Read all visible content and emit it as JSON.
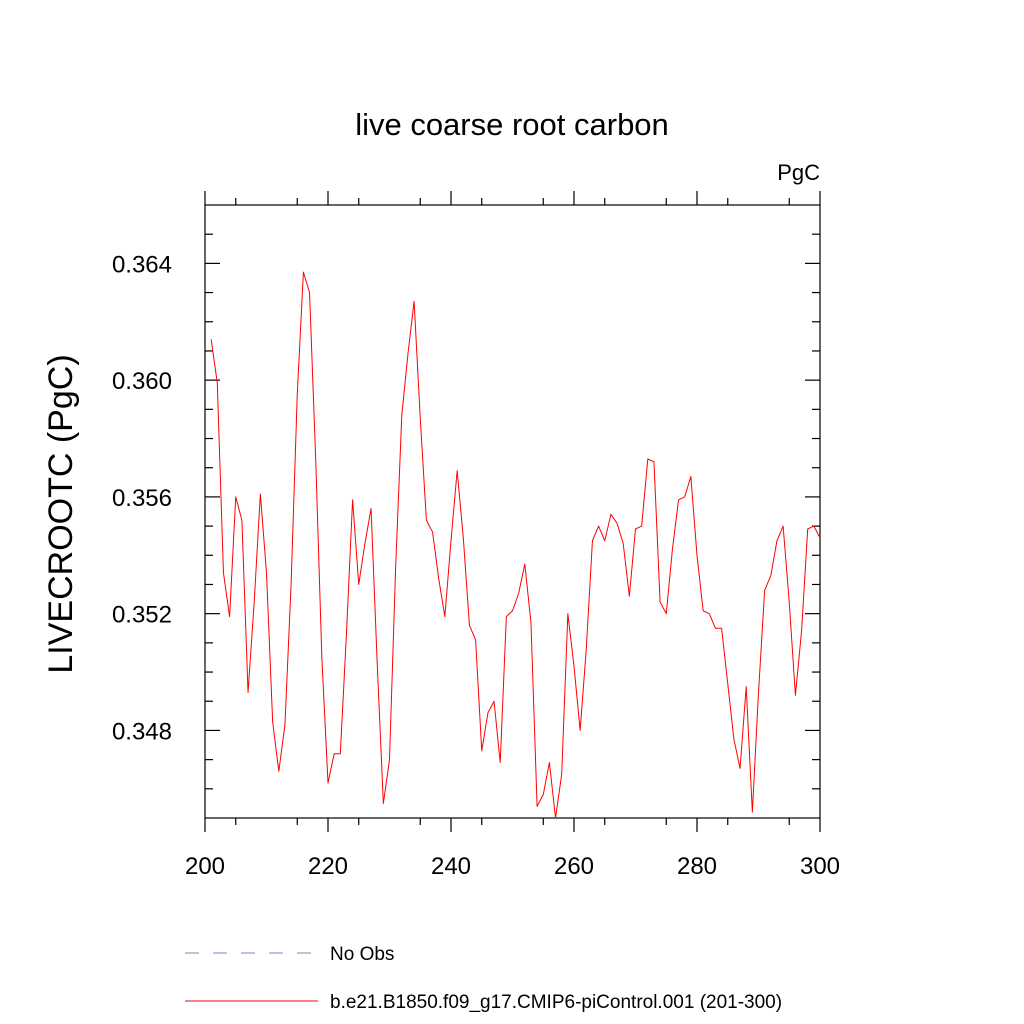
{
  "chart_data": {
    "type": "line",
    "title": "live coarse root carbon",
    "units_label": "PgC",
    "xlabel": "",
    "ylabel": "LIVECROOTC  (PgC)",
    "xlim": [
      200,
      300
    ],
    "ylim": [
      0.345,
      0.366
    ],
    "x_ticks": [
      200,
      220,
      240,
      260,
      280,
      300
    ],
    "x_tick_labels": [
      "200",
      "220",
      "240",
      "260",
      "280",
      "300"
    ],
    "y_ticks": [
      0.348,
      0.352,
      0.356,
      0.36,
      0.364
    ],
    "y_tick_labels": [
      "0.348",
      "0.352",
      "0.356",
      "0.360",
      "0.364"
    ],
    "grid": false,
    "legend_placement": "bottom",
    "series": [
      {
        "name": "b.e21.B1850.f09_g17.CMIP6-piControl.001 (201-300)",
        "color": "#ff0000",
        "style": "solid",
        "x": [
          201,
          202,
          203,
          204,
          205,
          206,
          207,
          208,
          209,
          210,
          211,
          212,
          213,
          214,
          215,
          216,
          217,
          218,
          219,
          220,
          221,
          222,
          223,
          224,
          225,
          226,
          227,
          228,
          229,
          230,
          231,
          232,
          233,
          234,
          235,
          236,
          237,
          238,
          239,
          240,
          241,
          242,
          243,
          244,
          245,
          246,
          247,
          248,
          249,
          250,
          251,
          252,
          253,
          254,
          255,
          256,
          257,
          258,
          259,
          260,
          261,
          262,
          263,
          264,
          265,
          266,
          267,
          268,
          269,
          270,
          271,
          272,
          273,
          274,
          275,
          276,
          277,
          278,
          279,
          280,
          281,
          282,
          283,
          284,
          285,
          286,
          287,
          288,
          289,
          290,
          291,
          292,
          293,
          294,
          295,
          296,
          297,
          298,
          299,
          300
        ],
        "y": [
          0.3614,
          0.3599,
          0.3534,
          0.3519,
          0.356,
          0.3552,
          0.3493,
          0.3524,
          0.3561,
          0.3534,
          0.3483,
          0.3466,
          0.3482,
          0.353,
          0.3595,
          0.3637,
          0.363,
          0.3573,
          0.3505,
          0.3462,
          0.3472,
          0.3472,
          0.3513,
          0.3559,
          0.353,
          0.3544,
          0.3556,
          0.3503,
          0.3455,
          0.347,
          0.3536,
          0.3588,
          0.3609,
          0.3627,
          0.3587,
          0.3552,
          0.3548,
          0.3532,
          0.3519,
          0.3545,
          0.3569,
          0.3546,
          0.3516,
          0.3511,
          0.3473,
          0.3486,
          0.349,
          0.3469,
          0.3519,
          0.3521,
          0.3527,
          0.3537,
          0.3517,
          0.3454,
          0.3458,
          0.3469,
          0.345,
          0.3465,
          0.352,
          0.3502,
          0.348,
          0.3508,
          0.3545,
          0.355,
          0.3545,
          0.3554,
          0.3551,
          0.3544,
          0.3526,
          0.3549,
          0.355,
          0.3573,
          0.3572,
          0.3524,
          0.352,
          0.3542,
          0.3559,
          0.356,
          0.3567,
          0.354,
          0.3521,
          0.352,
          0.3515,
          0.3515,
          0.3496,
          0.3477,
          0.3467,
          0.3495,
          0.3452,
          0.3493,
          0.3528,
          0.3533,
          0.3545,
          0.355,
          0.3524,
          0.3492,
          0.3514,
          0.3549,
          0.355,
          0.3546
        ]
      },
      {
        "name": "No Obs",
        "color": "#8080c0",
        "style": "dashed",
        "x": [],
        "y": []
      }
    ]
  }
}
